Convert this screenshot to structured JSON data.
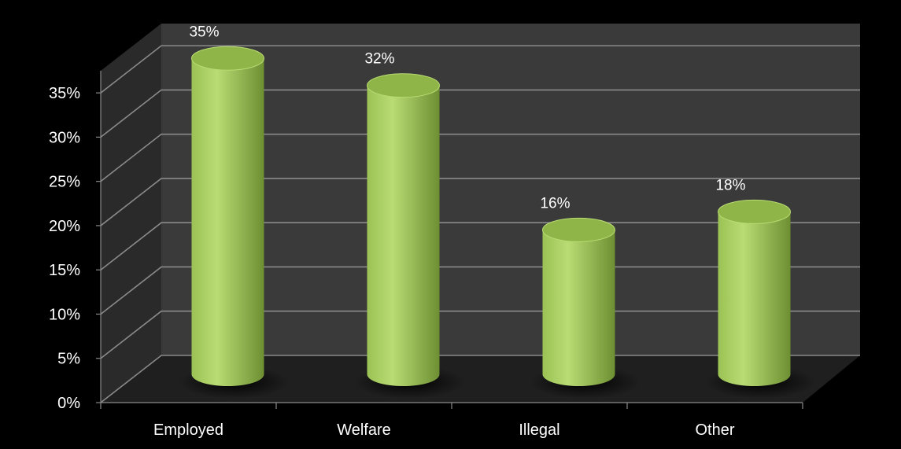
{
  "chart_data": {
    "type": "bar",
    "style": "3d-cylinder",
    "categories": [
      "Employed",
      "Welfare",
      "Illegal",
      "Other"
    ],
    "values": [
      35,
      32,
      16,
      18
    ],
    "data_labels": [
      "35%",
      "32%",
      "16%",
      "18%"
    ],
    "y_ticks": [
      0,
      5,
      10,
      15,
      20,
      25,
      30,
      35
    ],
    "y_tick_labels": [
      "0%",
      "5%",
      "10%",
      "15%",
      "20%",
      "25%",
      "30%",
      "35%"
    ],
    "ylim": [
      0,
      37.5
    ],
    "grid": true,
    "colors": {
      "background": "#000000",
      "back_wall": "#3a3a3a",
      "side_wall": "#2a2a2a",
      "floor": "#1f1f1f",
      "grid": "#8a8a8a",
      "bar_light": "#b9dc74",
      "bar_mid": "#9bc254",
      "bar_dark": "#6d8f32",
      "bar_top": "#8fb548",
      "text": "#ffffff"
    }
  }
}
